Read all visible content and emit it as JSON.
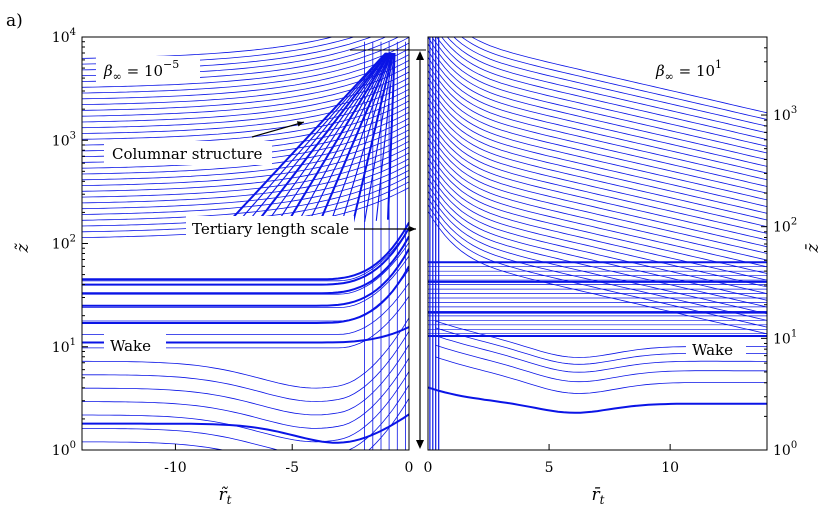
{
  "figure": {
    "panel_label": "a)"
  },
  "chart_data": [
    {
      "type": "contour",
      "panel": "left",
      "xlabel": "r̃",
      "xlabel_sub": "t",
      "ylabel": "z̃",
      "xlim": [
        -14,
        0
      ],
      "ylim": [
        1,
        10000
      ],
      "yscale": "log",
      "xticks": [
        -10,
        -5,
        0
      ],
      "xtick_labels": [
        "-10",
        "-5",
        "0"
      ],
      "yticks": [
        1,
        10,
        100,
        1000,
        10000
      ],
      "ytick_bases": [
        "10",
        "10",
        "10",
        "10",
        "10"
      ],
      "ytick_exps": [
        "0",
        "1",
        "2",
        "3",
        "4"
      ],
      "parameter": {
        "prefix": "β",
        "sub": "∞",
        "eq": " = 10",
        "exp": "−5"
      },
      "annotations": [
        {
          "text": "Columnar structure",
          "points_to": [
            -4.5,
            1500
          ]
        },
        {
          "text": "Tertiary length scale",
          "points_to": [
            0,
            260
          ]
        },
        {
          "text": "Wake",
          "points_to": [
            -13,
            11
          ]
        }
      ],
      "thick_levels_z": [
        45,
        40,
        33,
        25,
        17,
        11,
        1.8
      ],
      "columnar_onset_z": 100,
      "line_color": "#0a14e6"
    },
    {
      "type": "contour",
      "panel": "right",
      "xlabel": "r̄",
      "xlabel_sub": "t",
      "ylabel": "z̄",
      "xlim": [
        0,
        14
      ],
      "ylim": [
        1,
        5000
      ],
      "yscale": "log",
      "xticks": [
        0,
        5,
        10
      ],
      "xtick_labels": [
        "0",
        "5",
        "10"
      ],
      "yticks": [
        1,
        10,
        100,
        1000
      ],
      "ytick_bases": [
        "10",
        "10",
        "10",
        "10"
      ],
      "ytick_exps": [
        "0",
        "1",
        "2",
        "3"
      ],
      "parameter": {
        "prefix": "β",
        "sub": "∞",
        "eq": " = 10",
        "exp": "1"
      },
      "annotations": [
        {
          "text": "Wake",
          "points_to": [
            11,
            11
          ]
        }
      ],
      "thick_levels_z": [
        48,
        32,
        17,
        10.5,
        2.6
      ],
      "line_color": "#0a14e6"
    }
  ]
}
